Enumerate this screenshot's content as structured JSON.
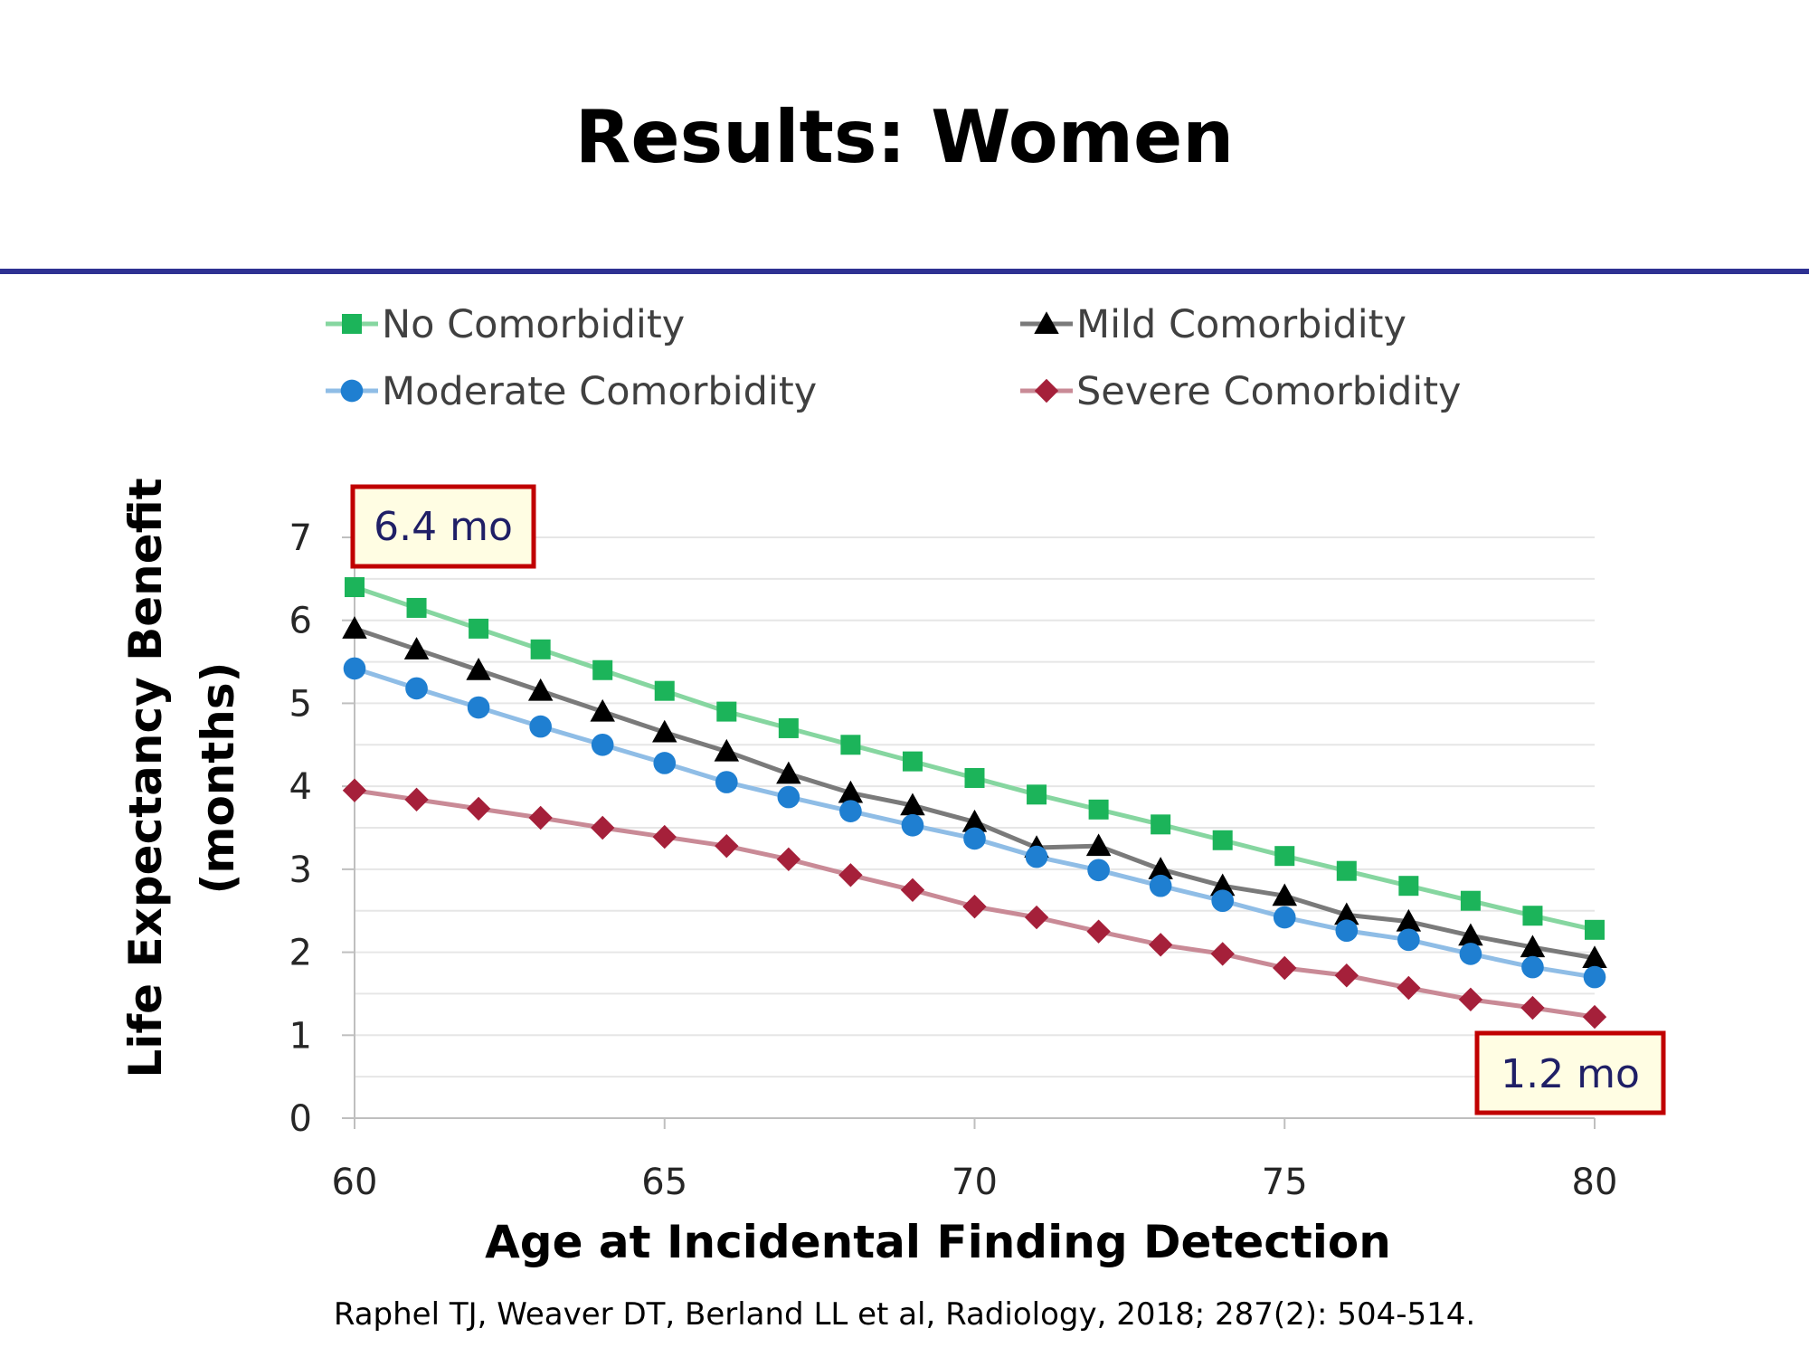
{
  "slide": {
    "title": "Results: Women",
    "citation": "Raphel TJ, Weaver DT, Berland LL et al, Radiology, 2018; 287(2): 504-514."
  },
  "colors": {
    "title_rule": "#2e3192",
    "callout_border": "#c00000",
    "callout_fill": "#fffde3",
    "gridline": "#e6e6e6",
    "axis": "#bfbfbf"
  },
  "chart_data": {
    "type": "line",
    "title": "",
    "xlabel": "Age at Incidental Finding Detection",
    "ylabel_lines": [
      "Life Expectancy Benefit",
      "(months)"
    ],
    "x": [
      60,
      61,
      62,
      63,
      64,
      65,
      66,
      67,
      68,
      69,
      70,
      71,
      72,
      73,
      74,
      75,
      76,
      77,
      78,
      79,
      80
    ],
    "xlim": [
      60,
      80
    ],
    "ylim": [
      0,
      7
    ],
    "xticks": [
      60,
      65,
      70,
      75,
      80
    ],
    "yticks": [
      0,
      1,
      2,
      3,
      4,
      5,
      6,
      7
    ],
    "grid": true,
    "legend_position": "top",
    "series": [
      {
        "name": "No Comorbidity",
        "marker": "square",
        "line_color": "#86d6a0",
        "marker_color": "#1cb45a",
        "values": [
          6.4,
          6.15,
          5.9,
          5.65,
          5.4,
          5.15,
          4.9,
          4.7,
          4.5,
          4.3,
          4.1,
          3.9,
          3.72,
          3.54,
          3.35,
          3.16,
          2.98,
          2.8,
          2.62,
          2.44,
          2.27
        ]
      },
      {
        "name": "Mild Comorbidity",
        "marker": "triangle",
        "line_color": "#7a7a7a",
        "marker_color": "#000000",
        "values": [
          5.9,
          5.65,
          5.4,
          5.15,
          4.9,
          4.65,
          4.42,
          4.15,
          3.92,
          3.77,
          3.57,
          3.26,
          3.28,
          3.0,
          2.8,
          2.68,
          2.45,
          2.37,
          2.2,
          2.06,
          1.93
        ]
      },
      {
        "name": "Moderate Comorbidity",
        "marker": "circle",
        "line_color": "#8fbde6",
        "marker_color": "#1f7fd1",
        "values": [
          5.42,
          5.18,
          4.95,
          4.72,
          4.5,
          4.28,
          4.05,
          3.87,
          3.7,
          3.53,
          3.37,
          3.15,
          2.99,
          2.8,
          2.62,
          2.42,
          2.26,
          2.15,
          1.98,
          1.82,
          1.7
        ]
      },
      {
        "name": "Severe Comorbidity",
        "marker": "diamond",
        "line_color": "#c98a96",
        "marker_color": "#a5203a",
        "values": [
          3.95,
          3.84,
          3.73,
          3.62,
          3.5,
          3.39,
          3.28,
          3.12,
          2.93,
          2.75,
          2.55,
          2.42,
          2.25,
          2.09,
          1.98,
          1.81,
          1.72,
          1.57,
          1.43,
          1.33,
          1.22
        ]
      }
    ],
    "annotations": [
      {
        "text": "6.4 mo",
        "anchor": "top-left"
      },
      {
        "text": "1.2 mo",
        "anchor": "bottom-right"
      }
    ]
  }
}
